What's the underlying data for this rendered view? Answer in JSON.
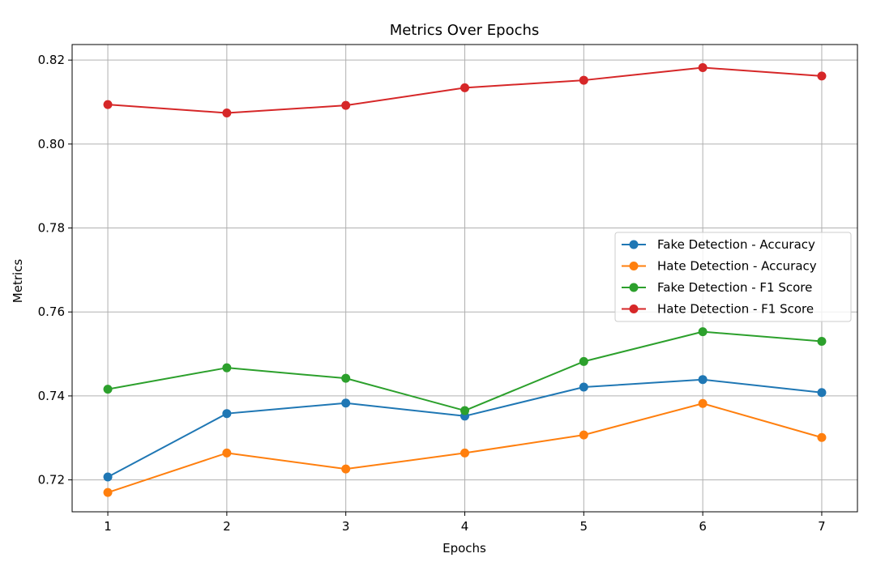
{
  "chart_data": {
    "type": "line",
    "title": "Metrics Over Epochs",
    "xlabel": "Epochs",
    "ylabel": "Metrics",
    "x": [
      1,
      2,
      3,
      4,
      5,
      6,
      7
    ],
    "xticks": [
      "1",
      "2",
      "3",
      "4",
      "5",
      "6",
      "7"
    ],
    "yticks": [
      "0.72",
      "0.74",
      "0.76",
      "0.78",
      "0.80",
      "0.82"
    ],
    "xlim": [
      0.7,
      7.3
    ],
    "ylim": [
      0.7124,
      0.8237
    ],
    "grid": true,
    "legend_position": "center-right",
    "marker": "circle",
    "series": [
      {
        "name": "Fake Detection - Accuracy",
        "color": "#1f77b4",
        "values": [
          0.7207,
          0.7358,
          0.7383,
          0.7352,
          0.7421,
          0.7439,
          0.7408
        ]
      },
      {
        "name": "Hate Detection - Accuracy",
        "color": "#ff7f0e",
        "values": [
          0.717,
          0.7264,
          0.7226,
          0.7264,
          0.7307,
          0.7382,
          0.7301
        ]
      },
      {
        "name": "Fake Detection - F1 Score",
        "color": "#2ca02c",
        "values": [
          0.7416,
          0.7467,
          0.7442,
          0.7365,
          0.7482,
          0.7553,
          0.753
        ]
      },
      {
        "name": "Hate Detection - F1 Score",
        "color": "#d62728",
        "values": [
          0.8094,
          0.8074,
          0.8092,
          0.8134,
          0.8152,
          0.8182,
          0.8162
        ]
      }
    ]
  }
}
